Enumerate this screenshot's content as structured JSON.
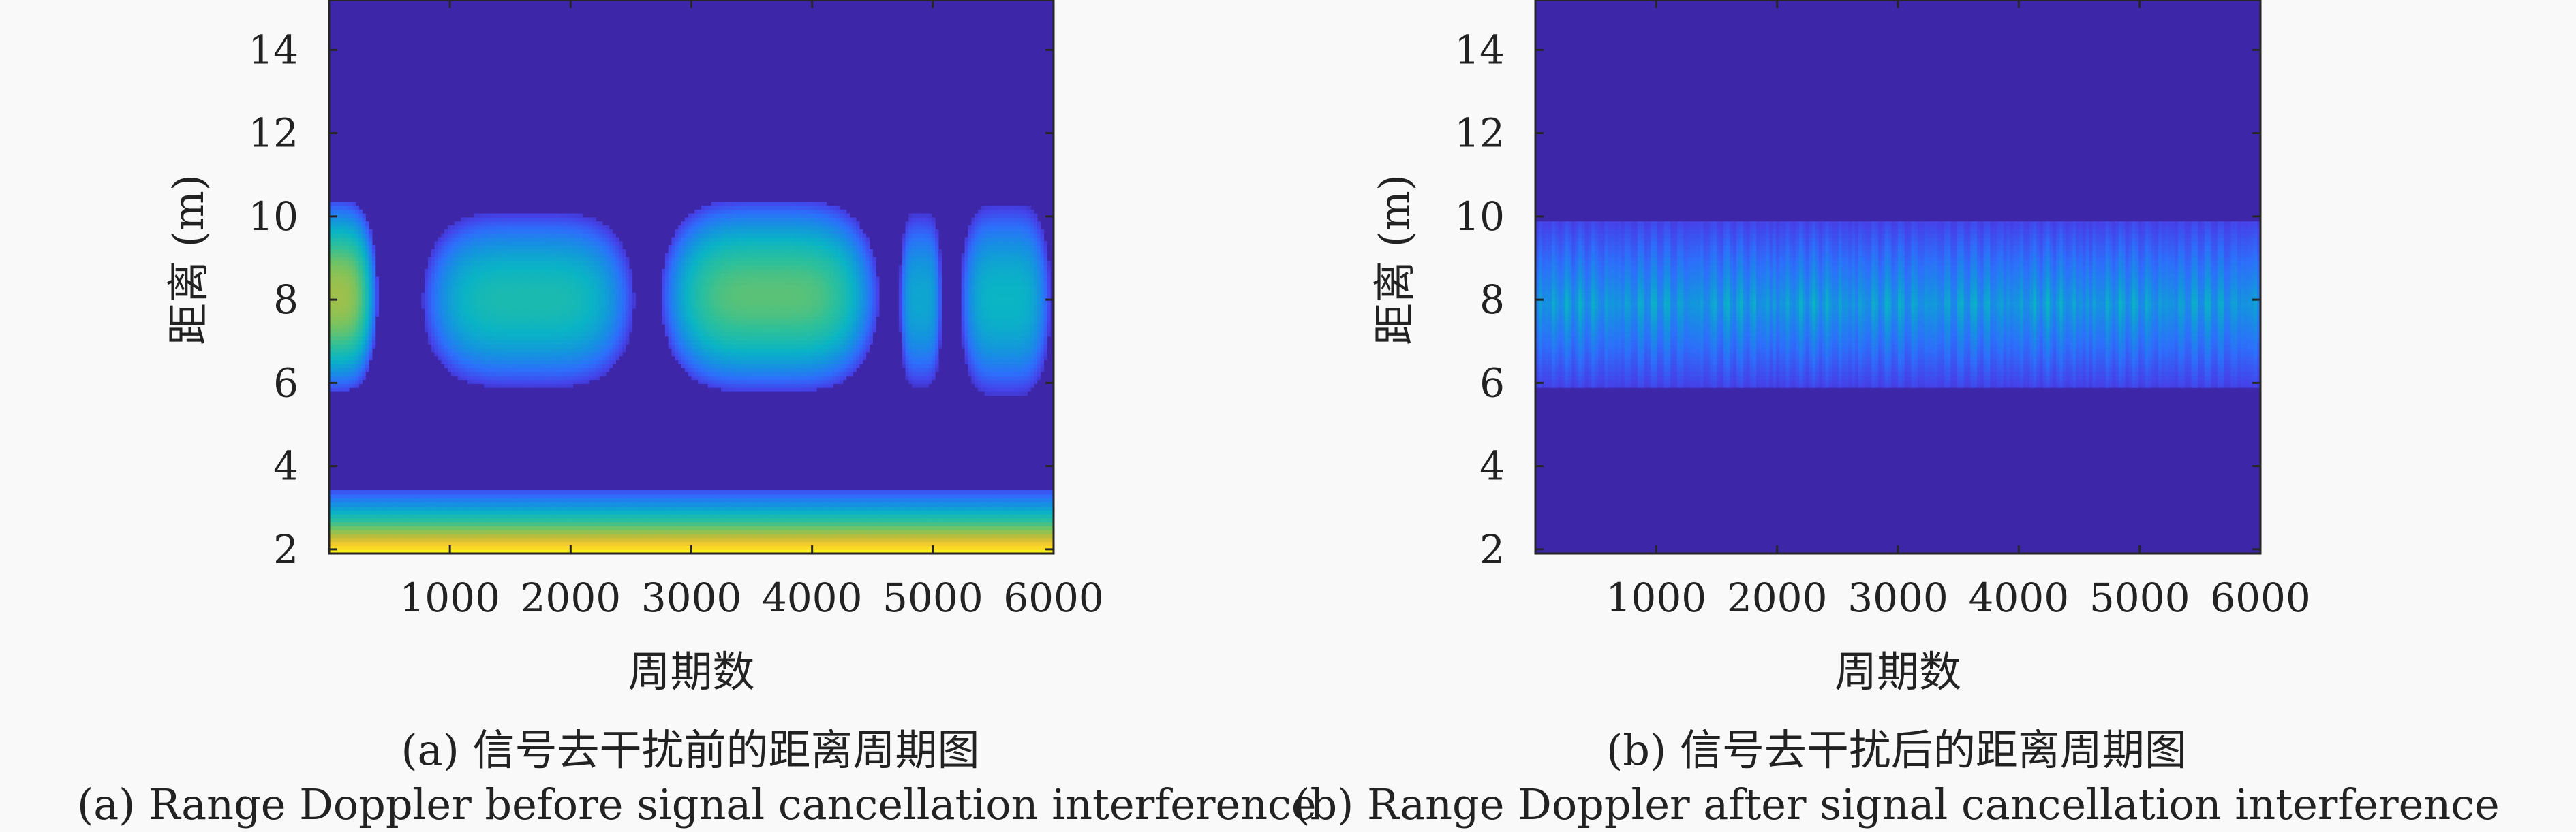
{
  "chart_data": [
    {
      "type": "heatmap",
      "panel": "a",
      "caption_cn": "(a) 信号去干扰前的距离周期图",
      "caption_en": "(a) Range Doppler before signal cancellation interference",
      "xlabel": "周期数",
      "ylabel": "距离 (m)",
      "xlim": [
        0,
        6000
      ],
      "ylim": [
        1.9,
        15.2
      ],
      "xticks": [
        1000,
        2000,
        3000,
        4000,
        5000,
        6000
      ],
      "yticks": [
        2,
        4,
        6,
        8,
        10,
        12,
        14
      ],
      "background_color": "#3e26a8",
      "colormap": [
        "#3e26a8",
        "#4443ea",
        "#2d6ffb",
        "#1592e0",
        "#0ab4c5",
        "#2dc09a",
        "#7bc35e",
        "#c7bc36",
        "#fbce2d",
        "#f9fb15"
      ],
      "blobs": [
        {
          "x_center": 0,
          "x_width": 800,
          "y_center": 8.1,
          "y_height": 4.6,
          "peak": 0.72
        },
        {
          "x_center": 1650,
          "x_width": 1750,
          "y_center": 8.0,
          "y_height": 4.2,
          "peak": 0.5
        },
        {
          "x_center": 3650,
          "x_width": 1800,
          "y_center": 8.1,
          "y_height": 4.6,
          "peak": 0.62
        },
        {
          "x_center": 4900,
          "x_width": 350,
          "y_center": 8.0,
          "y_height": 4.2,
          "peak": 0.4
        },
        {
          "x_center": 5600,
          "x_width": 750,
          "y_center": 8.0,
          "y_height": 4.6,
          "peak": 0.45
        }
      ],
      "bottom_band": {
        "y_from": 1.9,
        "y_to": 3.4,
        "peak": 1.0
      }
    },
    {
      "type": "heatmap",
      "panel": "b",
      "caption_cn": "(b) 信号去干扰后的距离周期图",
      "caption_en": "(b) Range Doppler after signal cancellation interference",
      "xlabel": "周期数",
      "ylabel": "距离 (m)",
      "xlim": [
        0,
        6000
      ],
      "ylim": [
        1.9,
        15.2
      ],
      "xticks": [
        1000,
        2000,
        3000,
        4000,
        5000,
        6000
      ],
      "yticks": [
        2,
        4,
        6,
        8,
        10,
        12,
        14
      ],
      "background_color": "#3e26a8",
      "colormap": [
        "#3e26a8",
        "#4443ea",
        "#2d6ffb",
        "#1592e0",
        "#0ab4c5",
        "#2dc09a",
        "#7bc35e",
        "#c7bc36",
        "#fbce2d",
        "#f9fb15"
      ],
      "band": {
        "y_from": 5.9,
        "y_to": 9.9,
        "y_center": 7.9,
        "peak": 0.45,
        "vertical_striations": true
      }
    }
  ]
}
